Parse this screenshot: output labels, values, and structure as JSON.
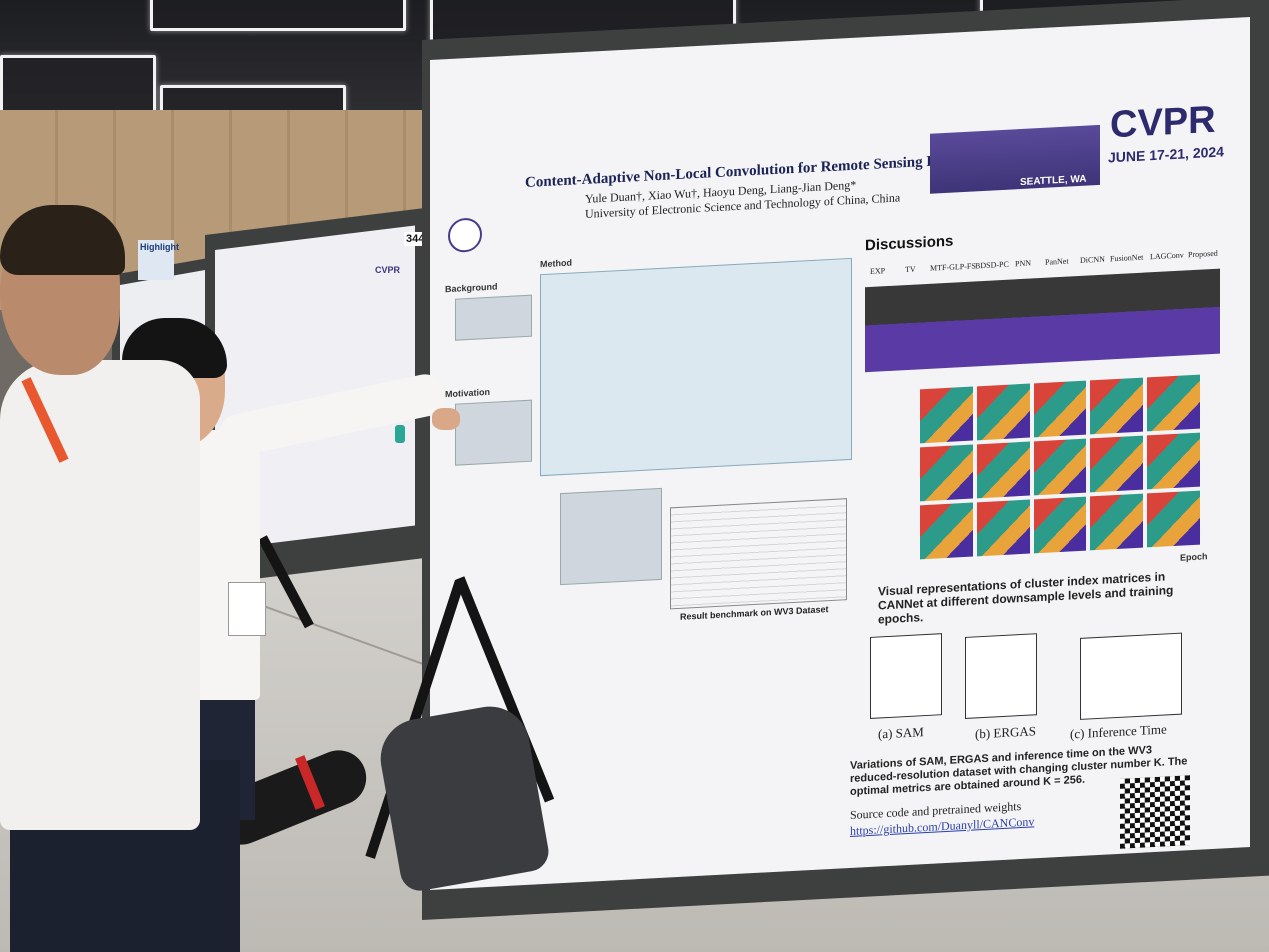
{
  "scene": {
    "description_type": "photo",
    "colors": {
      "accent": "#2d2a6e",
      "lanyard": "#e8572e",
      "floor": "#cdcac5"
    }
  },
  "main_poster": {
    "title": "Content-Adaptive Non-Local Convolution for Remote Sensing Pansharpening",
    "authors": "Yule Duan†, Xiao Wu†, Haoyu Deng, Liang-Jian Deng*",
    "affiliation": "University of Electronic Science and Technology of China, China",
    "section_background": "Background",
    "section_motivation": "Motivation",
    "section_method": "Method",
    "discussions_title": "Discussions",
    "discussion_columns": [
      "EXP",
      "TV",
      "MTF-GLP-FS",
      "BDSD-PC",
      "PNN",
      "PanNet",
      "DiCNN",
      "FusionNet",
      "LAGConv",
      "Proposed"
    ],
    "cluster_caption": "Visual representations of cluster index matrices in CANNet at different downsample levels and training epochs.",
    "plot_labels": [
      "(a) SAM",
      "(b) ERGAS",
      "(c) Inference Time"
    ],
    "variation_caption": "Variations of SAM, ERGAS and inference time on the WV3 reduced-resolution dataset with changing cluster number K. The optimal metrics are obtained around K = 256.",
    "source_text": "Source code and pretrained weights",
    "source_link": "https://github.com/Duanyll/CANConv",
    "benchmark_label": "Result benchmark on WV3 Dataset",
    "epoch_label": "Epoch"
  },
  "cvpr_banner": {
    "title": "CVPR",
    "date": "JUNE 17-21, 2024",
    "city": "SEATTLE, WA"
  },
  "board_number": "344",
  "left_poster_brand": "CVPR",
  "left_sign": "Highlight"
}
